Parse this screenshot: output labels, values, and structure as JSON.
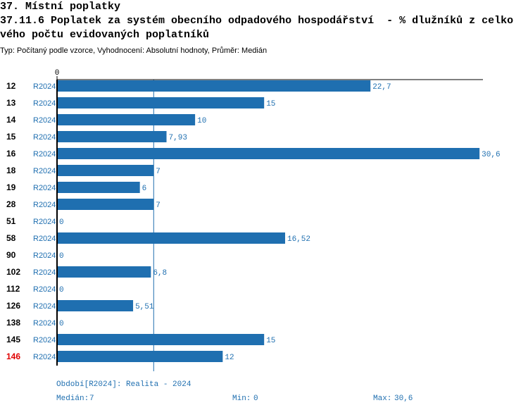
{
  "chart_data": {
    "type": "bar",
    "heading": "37. Místní poplatky",
    "title": "37.11.6 Poplatek za systém obecního odpadového hospodářství  - % dlužníků z celkového počtu evidovaných poplatníků",
    "subtitle": "Typ: Počítaný podle vzorce, Vyhodnocení: Absolutní hodnoty, Průměr: Medián",
    "categories": [
      "12",
      "13",
      "14",
      "15",
      "16",
      "18",
      "19",
      "28",
      "51",
      "58",
      "90",
      "102",
      "112",
      "126",
      "138",
      "145",
      "146"
    ],
    "category_label_colors": [
      "#000",
      "#000",
      "#000",
      "#000",
      "#000",
      "#000",
      "#000",
      "#000",
      "#000",
      "#000",
      "#000",
      "#000",
      "#000",
      "#000",
      "#000",
      "#000",
      "#e00000"
    ],
    "series": [
      {
        "name": "R2024",
        "color": "#1f6fb0",
        "values": [
          22.7,
          15,
          10,
          7.93,
          30.6,
          7,
          6,
          7,
          0,
          16.52,
          0,
          6.8,
          0,
          5.51,
          0,
          15,
          12
        ],
        "value_labels": [
          "22,7",
          "15",
          "10",
          "7,93",
          "30,6",
          "7",
          "6",
          "7",
          "0",
          "16,52",
          "0",
          "6,8",
          "0",
          "5,51",
          "0",
          "15",
          "12"
        ]
      }
    ],
    "xlim": [
      0,
      31
    ],
    "xticks": [
      0
    ],
    "period": "Období[R2024]: Realita - 2024",
    "median_label": "Medián:",
    "median": 7,
    "min_label": "Min:",
    "min": 0,
    "max_label": "Max:",
    "max": {
      "value": 30.6,
      "label": "30,6"
    }
  }
}
